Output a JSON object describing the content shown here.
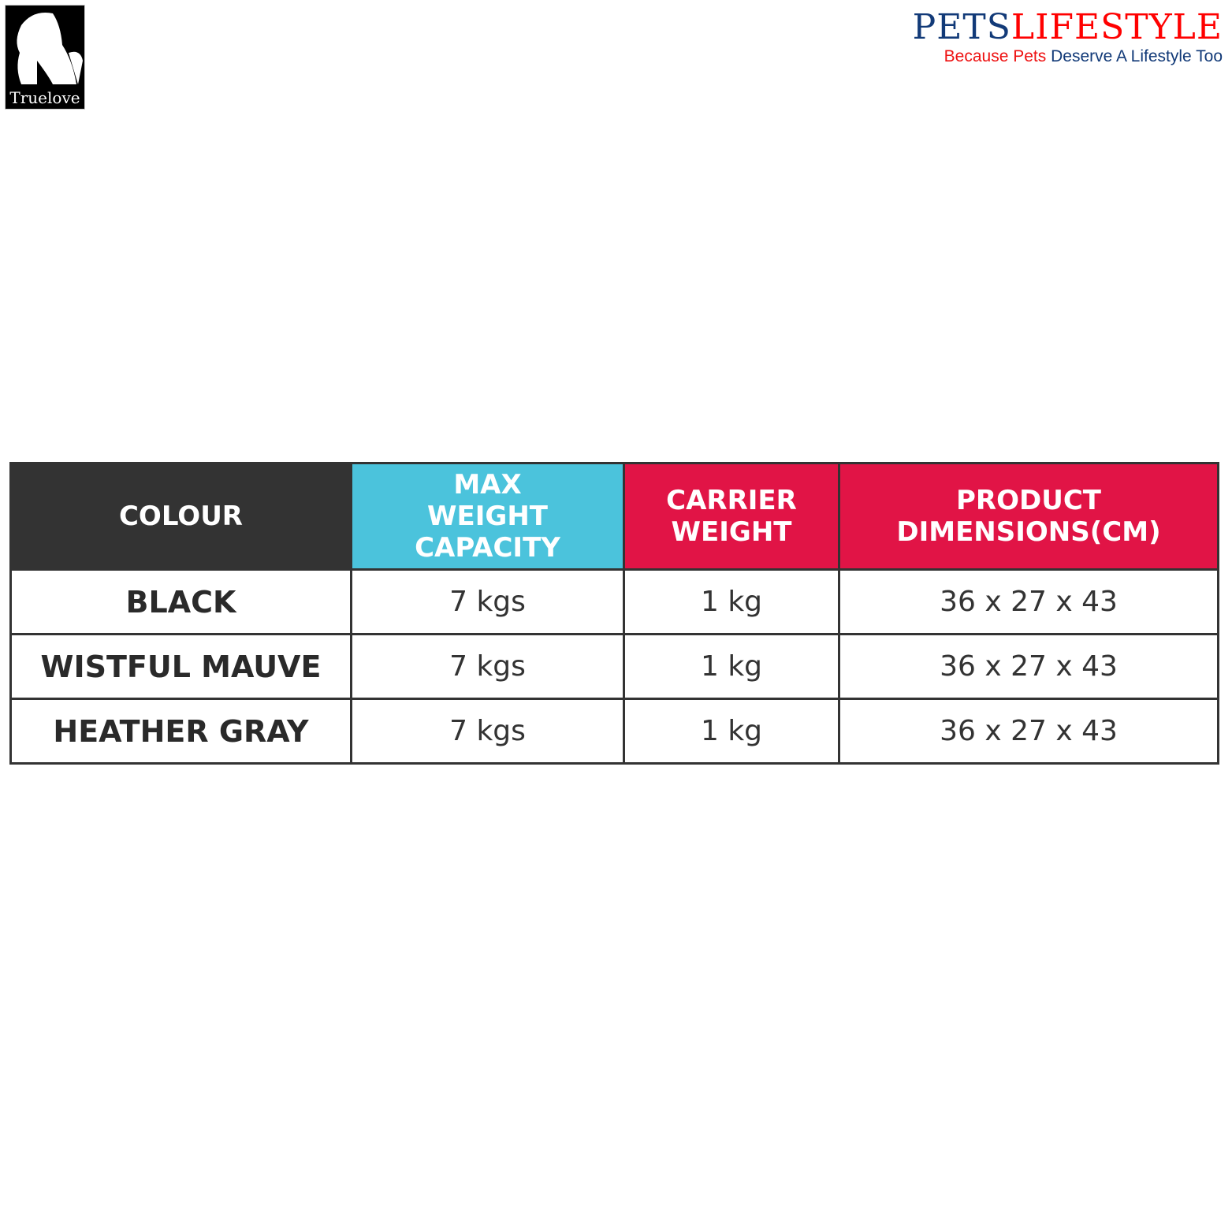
{
  "logos": {
    "truelove": "Truelove",
    "petslifestyle": {
      "pets": "PETS",
      "lifestyle": "LIFESTYLE",
      "tagline_red": "Because Pets",
      "tagline_blue": "Deserve A Lifestyle Too"
    }
  },
  "colors": {
    "dark": "#333333",
    "cyan": "#4bc3dc",
    "red": "#e11446",
    "navy": "#123a78"
  },
  "table": {
    "headers": [
      "COLOUR",
      "MAX WEIGHT CAPACITY",
      "CARRIER WEIGHT",
      "PRODUCT DIMENSIONS(CM)"
    ],
    "rows": [
      [
        "BLACK",
        "7 kgs",
        "1 kg",
        "36 x 27 x 43"
      ],
      [
        "WISTFUL MAUVE",
        "7 kgs",
        "1 kg",
        "36 x 27 x 43"
      ],
      [
        "HEATHER GRAY",
        "7 kgs",
        "1 kg",
        "36 x 27 x 43"
      ]
    ]
  }
}
